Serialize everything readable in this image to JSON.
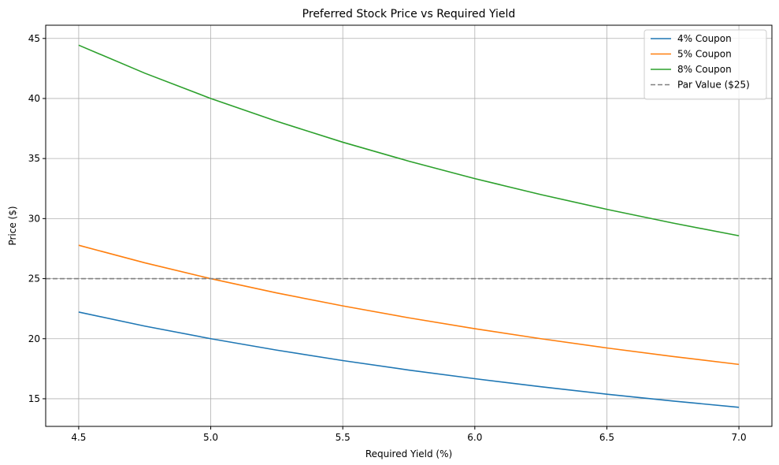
{
  "chart_data": {
    "type": "line",
    "title": "Preferred Stock Price vs Required Yield",
    "xlabel": "Required Yield (%)",
    "ylabel": "Price ($)",
    "xlim": [
      4.375,
      7.125
    ],
    "ylim": [
      12.7,
      46.1
    ],
    "x_ticks": [
      4.5,
      5.0,
      5.5,
      6.0,
      6.5,
      7.0
    ],
    "x_tick_labels": [
      "4.5",
      "5.0",
      "5.5",
      "6.0",
      "6.5",
      "7.0"
    ],
    "y_ticks": [
      15,
      20,
      25,
      30,
      35,
      40,
      45
    ],
    "y_tick_labels": [
      "15",
      "20",
      "25",
      "30",
      "35",
      "40",
      "45"
    ],
    "grid": true,
    "legend_position": "top-right",
    "x": [
      4.5,
      4.75,
      5.0,
      5.25,
      5.5,
      5.75,
      6.0,
      6.25,
      6.5,
      6.75,
      7.0
    ],
    "series": [
      {
        "name": "4% Coupon",
        "color": "#1f77b4",
        "style": "solid",
        "values": [
          22.22,
          21.05,
          20.0,
          19.05,
          18.18,
          17.39,
          16.67,
          16.0,
          15.38,
          14.81,
          14.29
        ]
      },
      {
        "name": "5% Coupon",
        "color": "#ff7f0e",
        "style": "solid",
        "values": [
          27.78,
          26.32,
          25.0,
          23.81,
          22.73,
          21.74,
          20.83,
          20.0,
          19.23,
          18.52,
          17.86
        ]
      },
      {
        "name": "8% Coupon",
        "color": "#2ca02c",
        "style": "solid",
        "values": [
          44.44,
          42.11,
          40.0,
          38.1,
          36.36,
          34.78,
          33.33,
          32.0,
          30.77,
          29.63,
          28.57
        ]
      }
    ],
    "reference_lines": [
      {
        "name": "Par Value ($25)",
        "y": 25,
        "color": "#808080",
        "style": "dashed"
      }
    ]
  }
}
